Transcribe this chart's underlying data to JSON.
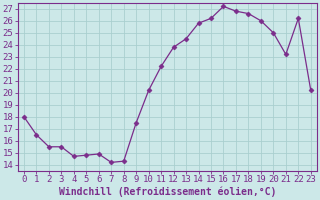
{
  "x": [
    0,
    1,
    2,
    3,
    4,
    5,
    6,
    7,
    8,
    9,
    10,
    11,
    12,
    13,
    14,
    15,
    16,
    17,
    18,
    19,
    20,
    21,
    22,
    23
  ],
  "y": [
    18,
    16.5,
    15.5,
    15.5,
    14.7,
    14.8,
    14.9,
    14.2,
    14.3,
    17.5,
    20.2,
    22.2,
    23.8,
    24.5,
    25.8,
    26.2,
    27.2,
    26.8,
    26.6,
    26.0,
    25.0,
    23.2,
    26.2,
    20.2
  ],
  "line_color": "#7b2d8b",
  "marker": "D",
  "marker_size": 2.5,
  "bg_color": "#cce8e8",
  "grid_color": "#aacfcf",
  "xlabel": "Windchill (Refroidissement éolien,°C)",
  "ylim_min": 13.5,
  "ylim_max": 27.5,
  "xlim_min": -0.5,
  "xlim_max": 23.5,
  "yticks": [
    14,
    15,
    16,
    17,
    18,
    19,
    20,
    21,
    22,
    23,
    24,
    25,
    26,
    27
  ],
  "xticks": [
    0,
    1,
    2,
    3,
    4,
    5,
    6,
    7,
    8,
    9,
    10,
    11,
    12,
    13,
    14,
    15,
    16,
    17,
    18,
    19,
    20,
    21,
    22,
    23
  ],
  "xtick_labels": [
    "0",
    "1",
    "2",
    "3",
    "4",
    "5",
    "6",
    "7",
    "8",
    "9",
    "10",
    "11",
    "12",
    "13",
    "14",
    "15",
    "16",
    "17",
    "18",
    "19",
    "20",
    "21",
    "22",
    "23"
  ],
  "ytick_labels": [
    "14",
    "15",
    "16",
    "17",
    "18",
    "19",
    "20",
    "21",
    "22",
    "23",
    "24",
    "25",
    "26",
    "27"
  ],
  "label_color": "#7b2d8b",
  "tick_fontsize": 6.5,
  "xlabel_fontsize": 7.0,
  "spine_color": "#7b2d8b"
}
